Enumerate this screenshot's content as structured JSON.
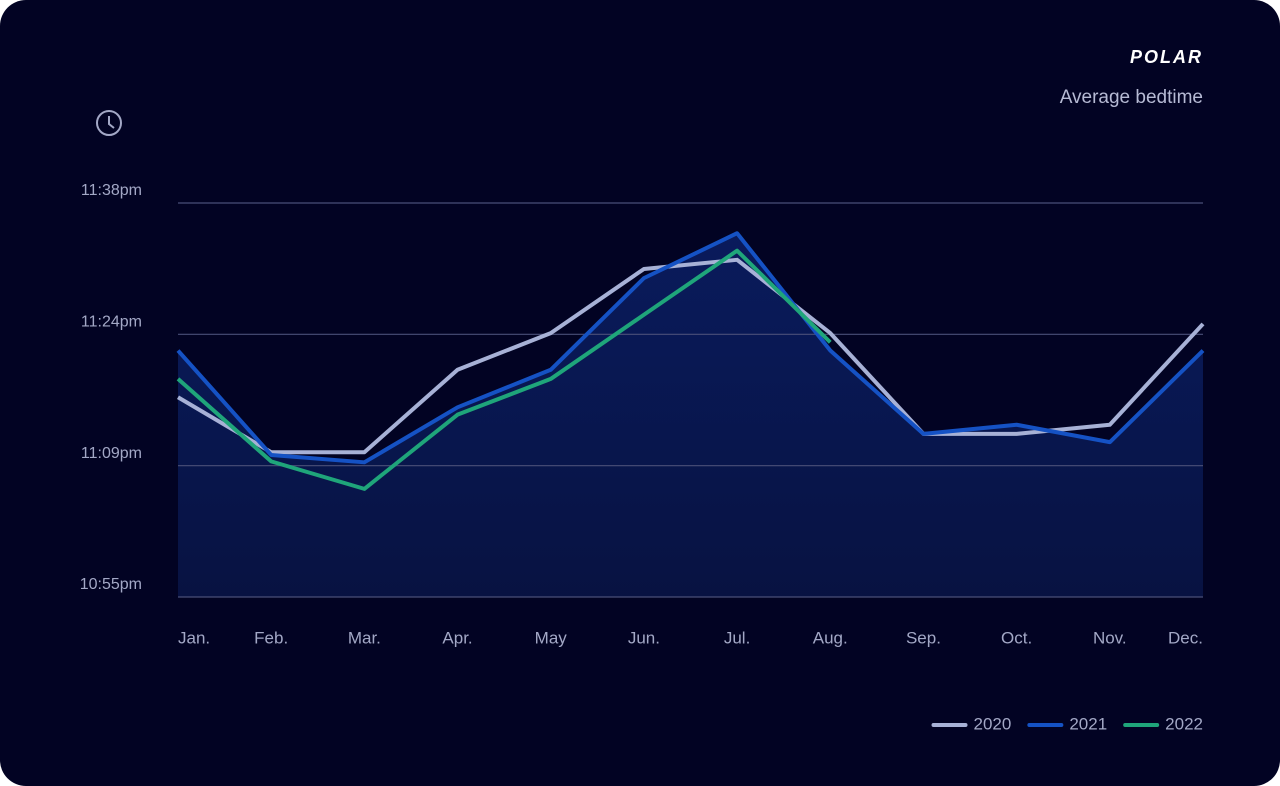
{
  "chart_data": {
    "type": "line",
    "brand": "POLAR",
    "title": "Average bedtime",
    "categories": [
      "Jan.",
      "Feb.",
      "Mar.",
      "Apr.",
      "May",
      "Jun.",
      "Jul.",
      "Aug.",
      "Sep.",
      "Oct.",
      "Nov.",
      "Dec."
    ],
    "series": [
      {
        "name": "2020",
        "color": "#a7b1d6",
        "values": [
          76.8,
          70.8,
          70.8,
          79.8,
          83.8,
          90.8,
          91.8,
          83.8,
          72.8,
          72.8,
          73.8,
          84.8
        ]
      },
      {
        "name": "2021",
        "color": "#1552c4",
        "area": true,
        "values": [
          81.9,
          70.5,
          69.7,
          75.7,
          79.8,
          89.8,
          94.7,
          81.9,
          72.8,
          73.8,
          71.9,
          81.9
        ]
      },
      {
        "name": "2022",
        "color": "#1fa57a",
        "values": [
          78.8,
          69.8,
          66.8,
          74.9,
          78.8,
          85.8,
          92.8,
          82.8,
          null,
          null,
          null,
          null
        ]
      }
    ],
    "ylim": [
      55,
      98
    ],
    "yticks": [
      {
        "value": 55,
        "label": "10:55pm"
      },
      {
        "value": 69.33,
        "label": "11:09pm"
      },
      {
        "value": 83.67,
        "label": "11:24pm"
      },
      {
        "value": 98,
        "label": "11:38pm"
      }
    ],
    "grid": true,
    "legend": "bottom-right"
  }
}
